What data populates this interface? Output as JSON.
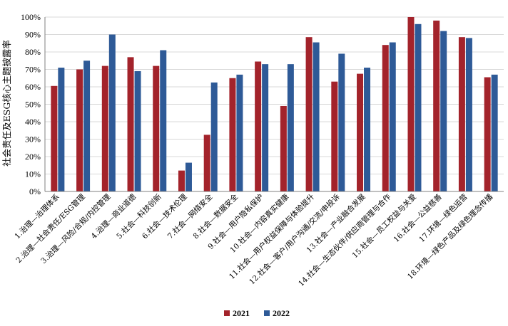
{
  "chart_data": {
    "type": "bar",
    "ylabel": "社会责任及ESG核心主题披露率",
    "xlabel": "",
    "ylim": [
      0,
      100
    ],
    "yticks": [
      "0%",
      "10%",
      "20%",
      "30%",
      "40%",
      "50%",
      "60%",
      "70%",
      "80%",
      "90%",
      "100%"
    ],
    "grid": true,
    "legend_position": "bottom",
    "categories": [
      "1.治理—治理体系",
      "2.治理—社会责任/ESG管理",
      "3.治理—风险/合规/内控管理",
      "4.治理—商业道德",
      "5.社会—科技创新",
      "6.社会—技术伦理",
      "7.社会—网络安全",
      "8.社会—数据安全",
      "9.社会—用户隐私保护",
      "10.社会—内容真实健康",
      "11.社会—用户权益保障与体验提升",
      "12.社会—客户/用户沟通/交流/申投诉",
      "13.社会—产业融合发展",
      "14.社会—生态伙伴/供应商管理与合作",
      "15.社会—员工权益与关爱",
      "16.社会—公益慈善",
      "17.环境—绿色运营",
      "18.环境—绿色产品及绿色理念传播"
    ],
    "series": [
      {
        "name": "2021",
        "color": "#A3232B",
        "values": [
          60.5,
          70,
          72,
          77,
          72,
          12,
          32.5,
          65,
          74.5,
          49,
          88.5,
          63,
          67.5,
          84,
          100,
          98,
          88.5,
          65.5
        ]
      },
      {
        "name": "2022",
        "color": "#2E5A97",
        "values": [
          71,
          75,
          90,
          69,
          81,
          16.5,
          62.5,
          67,
          73,
          73,
          85.5,
          79,
          71,
          85.5,
          96,
          92,
          88,
          67
        ]
      }
    ]
  }
}
